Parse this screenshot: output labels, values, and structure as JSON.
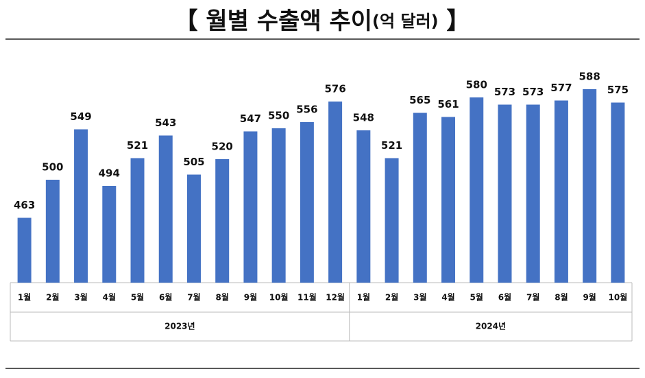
{
  "chart_data": {
    "type": "bar",
    "title": [
      "【 월별 수출액 추이",
      "(억 달러)",
      " 】"
    ],
    "groups": [
      {
        "label": "2023년",
        "categories": [
          "1월",
          "2월",
          "3월",
          "4월",
          "5월",
          "6월",
          "7월",
          "8월",
          "9월",
          "10월",
          "11월",
          "12월"
        ]
      },
      {
        "label": "2024년",
        "categories": [
          "1월",
          "2월",
          "3월",
          "4월",
          "5월",
          "6월",
          "7월",
          "8월",
          "9월",
          "10월"
        ]
      }
    ],
    "values": [
      463,
      500,
      549,
      494,
      521,
      543,
      505,
      520,
      547,
      550,
      556,
      576,
      548,
      521,
      565,
      561,
      580,
      573,
      573,
      577,
      588,
      575
    ],
    "color": "#4472c4",
    "ylim": [
      400,
      600
    ]
  }
}
